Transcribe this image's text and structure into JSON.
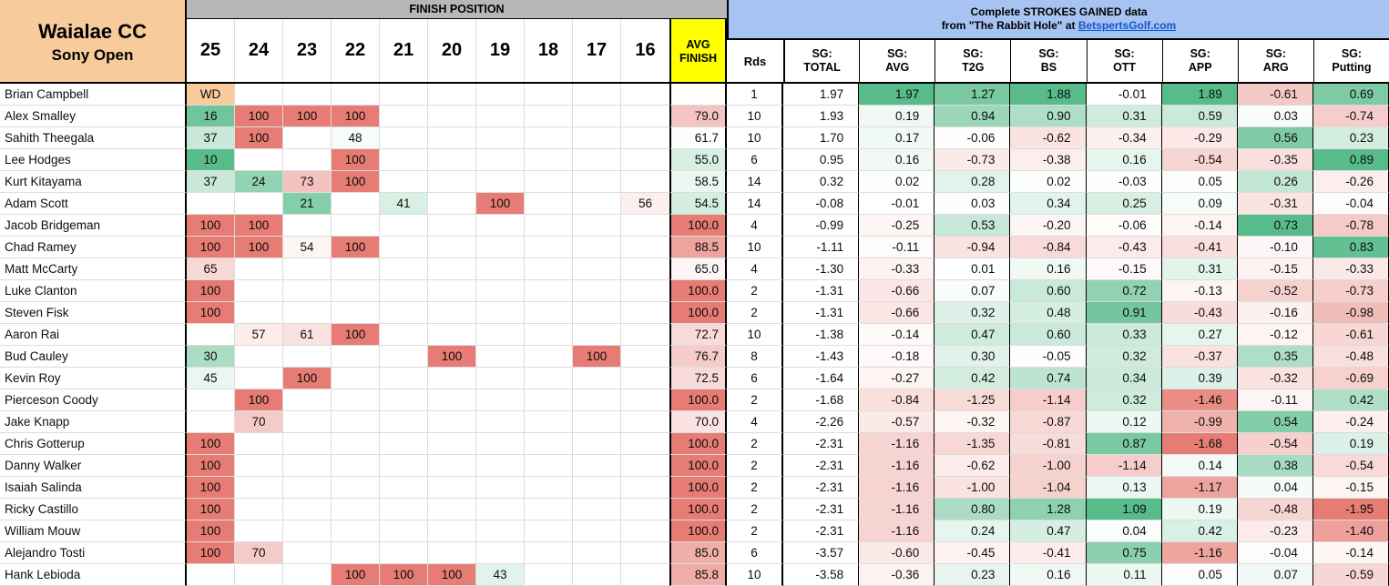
{
  "title": {
    "line1": "Waialae CC",
    "line2": "Sony Open"
  },
  "finish_header": {
    "label": "FINISH POSITION",
    "positions": [
      "25",
      "24",
      "23",
      "22",
      "21",
      "20",
      "19",
      "18",
      "17",
      "16"
    ]
  },
  "avg_header": {
    "line1": "AVG",
    "line2": "FINISH"
  },
  "rds_header": "Rds",
  "sg_banner": {
    "line1": "Complete STROKES GAINED data",
    "line2_prefix": "from \"The Rabbit Hole\" at ",
    "link": "BetspertsGolf.com"
  },
  "sg_columns": [
    {
      "key": "total",
      "label1": "SG:",
      "label2": "TOTAL"
    },
    {
      "key": "avg",
      "label1": "SG:",
      "label2": "AVG"
    },
    {
      "key": "t2g",
      "label1": "SG:",
      "label2": "T2G"
    },
    {
      "key": "bs",
      "label1": "SG:",
      "label2": "BS"
    },
    {
      "key": "ott",
      "label1": "SG:",
      "label2": "OTT"
    },
    {
      "key": "app",
      "label1": "SG:",
      "label2": "APP"
    },
    {
      "key": "arg",
      "label1": "SG:",
      "label2": "ARG"
    },
    {
      "key": "putting",
      "label1": "SG:",
      "label2": "Putting"
    }
  ],
  "colors": {
    "green": "#57BB8A",
    "red": "#E67C73",
    "tan": "#F8CB9C",
    "yellow": "#FFFF00",
    "gray_band": "#B7B7B7",
    "blue_band": "#A6C3F2",
    "link": "#1155CC",
    "grid": "#DCDCDC",
    "border": "#000000"
  },
  "color_scales": {
    "finish": {
      "mid": 50,
      "green_span": 40,
      "red_span": 50
    },
    "avg_finish": {
      "mid": 62,
      "green_span": 30,
      "red_span": 38
    },
    "sg": {
      "avg": {
        "g": 1.97,
        "r": -3.5
      },
      "t2g": {
        "g": 1.6,
        "r": -4.5
      },
      "bs": {
        "g": 1.88,
        "r": -3.0
      },
      "ott": {
        "g": 1.09,
        "r": -3.0
      },
      "app": {
        "g": 1.89,
        "r": -1.68
      },
      "arg": {
        "g": 0.73,
        "r": -1.5
      },
      "putting": {
        "g": 0.89,
        "r": -1.95
      }
    }
  },
  "rows": [
    {
      "name": "Brian Campbell",
      "fin": {
        "25": "WD"
      },
      "avg": null,
      "rds": "1",
      "sg": {
        "total": "1.97",
        "avg": "1.97",
        "t2g": "1.27",
        "bs": "1.88",
        "ott": "-0.01",
        "app": "1.89",
        "arg": "-0.61",
        "putting": "0.69"
      }
    },
    {
      "name": "Alex Smalley",
      "fin": {
        "25": "16",
        "24": "100",
        "23": "100",
        "22": "100"
      },
      "avg": "79.0",
      "rds": "10",
      "sg": {
        "total": "1.93",
        "avg": "0.19",
        "t2g": "0.94",
        "bs": "0.90",
        "ott": "0.31",
        "app": "0.59",
        "arg": "0.03",
        "putting": "-0.74"
      }
    },
    {
      "name": "Sahith Theegala",
      "fin": {
        "25": "37",
        "24": "100",
        "22": "48"
      },
      "avg": "61.7",
      "rds": "10",
      "sg": {
        "total": "1.70",
        "avg": "0.17",
        "t2g": "-0.06",
        "bs": "-0.62",
        "ott": "-0.34",
        "app": "-0.29",
        "arg": "0.56",
        "putting": "0.23"
      }
    },
    {
      "name": "Lee Hodges",
      "fin": {
        "25": "10",
        "22": "100"
      },
      "avg": "55.0",
      "rds": "6",
      "sg": {
        "total": "0.95",
        "avg": "0.16",
        "t2g": "-0.73",
        "bs": "-0.38",
        "ott": "0.16",
        "app": "-0.54",
        "arg": "-0.35",
        "putting": "0.89"
      }
    },
    {
      "name": "Kurt Kitayama",
      "fin": {
        "25": "37",
        "24": "24",
        "23": "73",
        "22": "100"
      },
      "avg": "58.5",
      "rds": "14",
      "sg": {
        "total": "0.32",
        "avg": "0.02",
        "t2g": "0.28",
        "bs": "0.02",
        "ott": "-0.03",
        "app": "0.05",
        "arg": "0.26",
        "putting": "-0.26"
      }
    },
    {
      "name": "Adam Scott",
      "fin": {
        "23": "21",
        "21": "41",
        "19": "100",
        "16": "56"
      },
      "avg": "54.5",
      "rds": "14",
      "sg": {
        "total": "-0.08",
        "avg": "-0.01",
        "t2g": "0.03",
        "bs": "0.34",
        "ott": "0.25",
        "app": "0.09",
        "arg": "-0.31",
        "putting": "-0.04"
      }
    },
    {
      "name": "Jacob Bridgeman",
      "fin": {
        "25": "100",
        "24": "100"
      },
      "avg": "100.0",
      "rds": "4",
      "sg": {
        "total": "-0.99",
        "avg": "-0.25",
        "t2g": "0.53",
        "bs": "-0.20",
        "ott": "-0.06",
        "app": "-0.14",
        "arg": "0.73",
        "putting": "-0.78"
      }
    },
    {
      "name": "Chad Ramey",
      "fin": {
        "25": "100",
        "24": "100",
        "23": "54",
        "22": "100"
      },
      "avg": "88.5",
      "rds": "10",
      "sg": {
        "total": "-1.11",
        "avg": "-0.11",
        "t2g": "-0.94",
        "bs": "-0.84",
        "ott": "-0.43",
        "app": "-0.41",
        "arg": "-0.10",
        "putting": "0.83"
      }
    },
    {
      "name": "Matt McCarty",
      "fin": {
        "25": "65"
      },
      "avg": "65.0",
      "rds": "4",
      "sg": {
        "total": "-1.30",
        "avg": "-0.33",
        "t2g": "0.01",
        "bs": "0.16",
        "ott": "-0.15",
        "app": "0.31",
        "arg": "-0.15",
        "putting": "-0.33"
      }
    },
    {
      "name": "Luke Clanton",
      "fin": {
        "25": "100"
      },
      "avg": "100.0",
      "rds": "2",
      "sg": {
        "total": "-1.31",
        "avg": "-0.66",
        "t2g": "0.07",
        "bs": "0.60",
        "ott": "0.72",
        "app": "-0.13",
        "arg": "-0.52",
        "putting": "-0.73"
      }
    },
    {
      "name": "Steven Fisk",
      "fin": {
        "25": "100"
      },
      "avg": "100.0",
      "rds": "2",
      "sg": {
        "total": "-1.31",
        "avg": "-0.66",
        "t2g": "0.32",
        "bs": "0.48",
        "ott": "0.91",
        "app": "-0.43",
        "arg": "-0.16",
        "putting": "-0.98"
      }
    },
    {
      "name": "Aaron Rai",
      "fin": {
        "24": "57",
        "23": "61",
        "22": "100"
      },
      "avg": "72.7",
      "rds": "10",
      "sg": {
        "total": "-1.38",
        "avg": "-0.14",
        "t2g": "0.47",
        "bs": "0.60",
        "ott": "0.33",
        "app": "0.27",
        "arg": "-0.12",
        "putting": "-0.61"
      }
    },
    {
      "name": "Bud Cauley",
      "fin": {
        "25": "30",
        "20": "100",
        "17": "100"
      },
      "avg": "76.7",
      "rds": "8",
      "sg": {
        "total": "-1.43",
        "avg": "-0.18",
        "t2g": "0.30",
        "bs": "-0.05",
        "ott": "0.32",
        "app": "-0.37",
        "arg": "0.35",
        "putting": "-0.48"
      }
    },
    {
      "name": "Kevin Roy",
      "fin": {
        "25": "45",
        "23": "100"
      },
      "avg": "72.5",
      "rds": "6",
      "sg": {
        "total": "-1.64",
        "avg": "-0.27",
        "t2g": "0.42",
        "bs": "0.74",
        "ott": "0.34",
        "app": "0.39",
        "arg": "-0.32",
        "putting": "-0.69"
      }
    },
    {
      "name": "Pierceson Coody",
      "fin": {
        "24": "100"
      },
      "avg": "100.0",
      "rds": "2",
      "sg": {
        "total": "-1.68",
        "avg": "-0.84",
        "t2g": "-1.25",
        "bs": "-1.14",
        "ott": "0.32",
        "app": "-1.46",
        "arg": "-0.11",
        "putting": "0.42"
      }
    },
    {
      "name": "Jake Knapp",
      "fin": {
        "24": "70"
      },
      "avg": "70.0",
      "rds": "4",
      "sg": {
        "total": "-2.26",
        "avg": "-0.57",
        "t2g": "-0.32",
        "bs": "-0.87",
        "ott": "0.12",
        "app": "-0.99",
        "arg": "0.54",
        "putting": "-0.24"
      }
    },
    {
      "name": "Chris Gotterup",
      "fin": {
        "25": "100"
      },
      "avg": "100.0",
      "rds": "2",
      "sg": {
        "total": "-2.31",
        "avg": "-1.16",
        "t2g": "-1.35",
        "bs": "-0.81",
        "ott": "0.87",
        "app": "-1.68",
        "arg": "-0.54",
        "putting": "0.19"
      }
    },
    {
      "name": "Danny Walker",
      "fin": {
        "25": "100"
      },
      "avg": "100.0",
      "rds": "2",
      "sg": {
        "total": "-2.31",
        "avg": "-1.16",
        "t2g": "-0.62",
        "bs": "-1.00",
        "ott": "-1.14",
        "app": "0.14",
        "arg": "0.38",
        "putting": "-0.54"
      }
    },
    {
      "name": "Isaiah Salinda",
      "fin": {
        "25": "100"
      },
      "avg": "100.0",
      "rds": "2",
      "sg": {
        "total": "-2.31",
        "avg": "-1.16",
        "t2g": "-1.00",
        "bs": "-1.04",
        "ott": "0.13",
        "app": "-1.17",
        "arg": "0.04",
        "putting": "-0.15"
      }
    },
    {
      "name": "Ricky Castillo",
      "fin": {
        "25": "100"
      },
      "avg": "100.0",
      "rds": "2",
      "sg": {
        "total": "-2.31",
        "avg": "-1.16",
        "t2g": "0.80",
        "bs": "1.28",
        "ott": "1.09",
        "app": "0.19",
        "arg": "-0.48",
        "putting": "-1.95"
      }
    },
    {
      "name": "William Mouw",
      "fin": {
        "25": "100"
      },
      "avg": "100.0",
      "rds": "2",
      "sg": {
        "total": "-2.31",
        "avg": "-1.16",
        "t2g": "0.24",
        "bs": "0.47",
        "ott": "0.04",
        "app": "0.42",
        "arg": "-0.23",
        "putting": "-1.40"
      }
    },
    {
      "name": "Alejandro Tosti",
      "fin": {
        "25": "100",
        "24": "70"
      },
      "avg": "85.0",
      "rds": "6",
      "sg": {
        "total": "-3.57",
        "avg": "-0.60",
        "t2g": "-0.45",
        "bs": "-0.41",
        "ott": "0.75",
        "app": "-1.16",
        "arg": "-0.04",
        "putting": "-0.14"
      }
    },
    {
      "name": "Hank Lebioda",
      "fin": {
        "22": "100",
        "21": "100",
        "20": "100",
        "19": "43"
      },
      "avg": "85.8",
      "rds": "10",
      "sg": {
        "total": "-3.58",
        "avg": "-0.36",
        "t2g": "0.23",
        "bs": "0.16",
        "ott": "0.11",
        "app": "0.05",
        "arg": "0.07",
        "putting": "-0.59"
      }
    }
  ]
}
